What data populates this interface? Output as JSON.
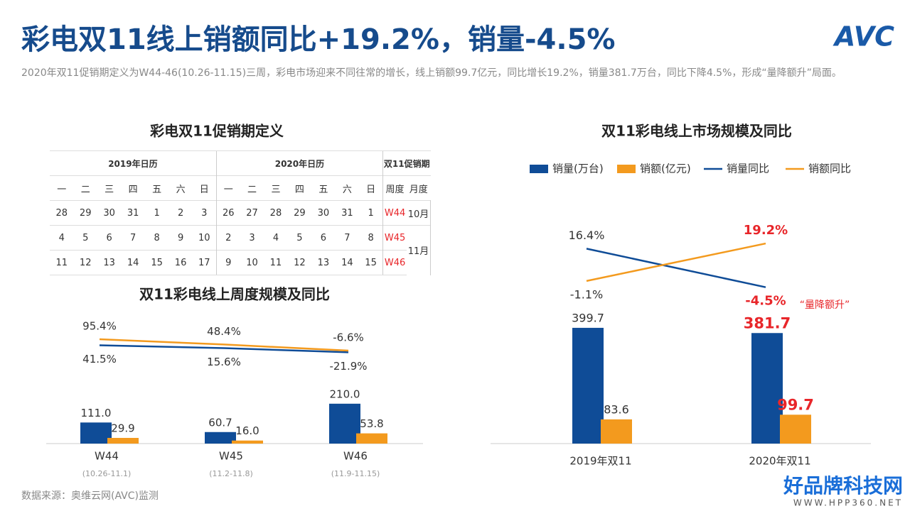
{
  "header": {
    "title": "彩电双11线上销额同比+19.2%，销量-4.5%",
    "subtitle": "2020年双11促销期定义为W44-46(10.26-11.15)三周，彩电市场迎来不同往常的增长，线上销额99.7亿元，同比增长19.2%，销量381.7万台，同比下降4.5%，形成“量降额升”局面。",
    "logo": "AVC"
  },
  "calendar": {
    "title": "彩电双11促销期定义",
    "groups": [
      "2019年日历",
      "2020年日历",
      "双11促销期"
    ],
    "weekdays": [
      "一",
      "二",
      "三",
      "四",
      "五",
      "六",
      "日"
    ],
    "period_columns": [
      "周度",
      "月度"
    ],
    "rows": [
      [
        28,
        29,
        30,
        31,
        1,
        2,
        3,
        26,
        27,
        28,
        29,
        30,
        31,
        1
      ],
      [
        4,
        5,
        6,
        7,
        8,
        9,
        10,
        2,
        3,
        4,
        5,
        6,
        7,
        8
      ],
      [
        11,
        12,
        13,
        14,
        15,
        16,
        17,
        9,
        10,
        11,
        12,
        13,
        14,
        15
      ]
    ],
    "weeks": [
      "W44",
      "W45",
      "W46"
    ],
    "months": [
      "10月",
      "11月"
    ]
  },
  "chart_data": [
    {
      "type": "combo",
      "title": "双11彩电线上周度规模及同比",
      "categories": [
        "W44",
        "W45",
        "W46"
      ],
      "category_notes": [
        "(10.26-11.1)",
        "(11.2-11.8)",
        "(11.9-11.15)"
      ],
      "series": [
        {
          "name": "销量(万台)",
          "kind": "bar",
          "color": "#0f4c97",
          "values": [
            111.0,
            60.7,
            210.0
          ],
          "value_labels": [
            "111.0",
            "60.7",
            "210.0"
          ]
        },
        {
          "name": "销额(亿元)",
          "kind": "bar",
          "color": "#f39a1e",
          "values": [
            29.9,
            16.0,
            53.8
          ],
          "value_labels": [
            "29.9",
            "16.0",
            "53.8"
          ]
        },
        {
          "name": "销量同比",
          "kind": "line",
          "axis": "y2",
          "color": "#0f4c97",
          "values": [
            41.5,
            15.6,
            -21.9
          ],
          "value_labels": [
            "41.5%",
            "15.6%",
            "-21.9%"
          ]
        },
        {
          "name": "销额同比",
          "kind": "line",
          "axis": "y2",
          "color": "#f39a1e",
          "values": [
            95.4,
            48.4,
            -6.6
          ],
          "value_labels": [
            "95.4%",
            "48.4%",
            "-6.6%"
          ]
        }
      ],
      "ylim": [
        0,
        400
      ],
      "y2lim": [
        -600,
        300
      ],
      "legend": false
    },
    {
      "type": "combo",
      "title": "双11彩电线上市场规模及同比",
      "categories": [
        "2019年双11",
        "2020年双11"
      ],
      "series": [
        {
          "name": "销量(万台)",
          "kind": "bar",
          "color": "#0f4c97",
          "values": [
            399.7,
            381.7
          ],
          "value_labels": [
            "399.7",
            "381.7"
          ]
        },
        {
          "name": "销额(亿元)",
          "kind": "bar",
          "color": "#f39a1e",
          "values": [
            83.6,
            99.7
          ],
          "value_labels": [
            "83.6",
            "99.7"
          ]
        },
        {
          "name": "销量同比",
          "kind": "line",
          "axis": "y2",
          "color": "#0f4c97",
          "values": [
            16.4,
            -4.5
          ],
          "value_labels": [
            "16.4%",
            "-4.5%"
          ]
        },
        {
          "name": "销额同比",
          "kind": "line",
          "axis": "y2",
          "color": "#f39a1e",
          "values": [
            -1.1,
            19.2
          ],
          "value_labels": [
            "-1.1%",
            "19.2%"
          ]
        }
      ],
      "ylim": [
        0,
        500
      ],
      "y2lim": [
        -60,
        40
      ],
      "legend": "top",
      "highlight_last": true,
      "highlight_color": "#e8262a",
      "annotation": "“量降额升”"
    }
  ],
  "footer": {
    "source": "数据来源：奥维云网(AVC)监测",
    "watermark": "好品牌科技网",
    "watermark_url": "WWW.HPP360.NET"
  }
}
